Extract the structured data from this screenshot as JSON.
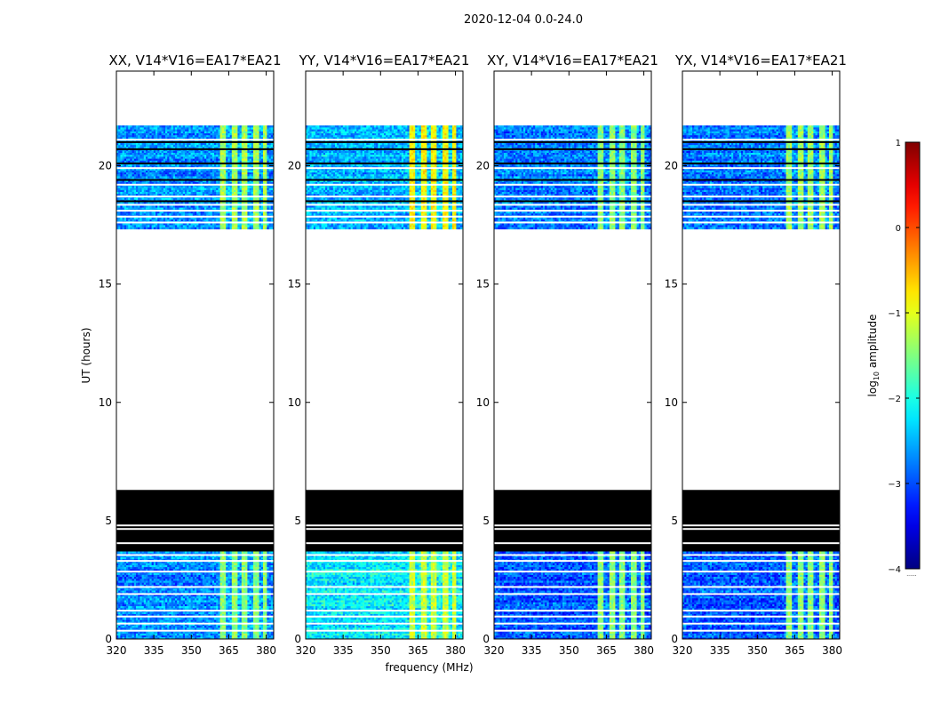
{
  "figure": {
    "suptitle": "2020-12-04 0.0-24.0",
    "xlabel": "frequency (MHz)",
    "ylabel": "UT (hours)",
    "colorbar_label": "log",
    "colorbar_label_sub": "10",
    "colorbar_label_rest": " amplitude",
    "colorbar_footnote": "......"
  },
  "colors": {
    "background": "#ffffff",
    "flag": "#000000",
    "colormap": "jet"
  },
  "chart_data": {
    "type": "heatmap",
    "title": "2020-12-04 0.0-24.0",
    "xlabel": "frequency (MHz)",
    "ylabel": "UT (hours)",
    "xlim": [
      320,
      383
    ],
    "ylim": [
      0,
      24
    ],
    "xticks": [
      320,
      335,
      350,
      365,
      380
    ],
    "yticks": [
      0,
      5,
      10,
      15,
      20
    ],
    "colorbar": {
      "label": "log10 amplitude",
      "range": [
        -4,
        1
      ],
      "ticks": [
        -4,
        -3,
        -2,
        -1,
        0,
        1
      ],
      "colormap": "jet"
    },
    "data_time_ranges_hours": [
      [
        0.0,
        3.7
      ],
      [
        17.4,
        21.7
      ]
    ],
    "fully_flagged_time_range_hours": [
      3.7,
      6.3
    ],
    "white_gap_hours": [
      0.35,
      0.65,
      0.95,
      1.2,
      1.9,
      2.2,
      2.85,
      3.3,
      3.55,
      4.05,
      4.65,
      4.8,
      17.6,
      17.85,
      18.1,
      18.35,
      18.7,
      19.2,
      19.9,
      21.1
    ],
    "dark_flag_lines_hours": [
      18.5,
      19.4,
      20.1,
      20.7,
      21.0
    ],
    "rfi_band_mhz": [
      361,
      380
    ],
    "rfi_channels_mhz": [
      [
        361,
        363.5
      ],
      [
        365.5,
        368
      ],
      [
        370,
        372
      ],
      [
        374.5,
        376.5
      ],
      [
        378,
        380
      ]
    ],
    "panels": [
      {
        "title": "XX, V14*V16=EA17*EA21",
        "polarization": "XX",
        "base_log_amp": {
          "early": -2.7,
          "late": -2.65
        },
        "rfi_peak_log_amp": {
          "early": -1.6,
          "late": -1.45
        }
      },
      {
        "title": "YY, V14*V16=EA17*EA21",
        "polarization": "YY",
        "base_log_amp": {
          "early": -2.2,
          "late": -2.5
        },
        "rfi_peak_log_amp": {
          "early": -1.3,
          "late": -1.0
        }
      },
      {
        "title": "XY, V14*V16=EA17*EA21",
        "polarization": "XY",
        "base_log_amp": {
          "early": -2.95,
          "late": -2.75
        },
        "rfi_peak_log_amp": {
          "early": -1.6,
          "late": -1.6
        }
      },
      {
        "title": "YX, V14*V16=EA17*EA21",
        "polarization": "YX",
        "base_log_amp": {
          "early": -2.9,
          "late": -2.75
        },
        "rfi_peak_log_amp": {
          "early": -1.6,
          "late": -1.5
        }
      }
    ]
  }
}
